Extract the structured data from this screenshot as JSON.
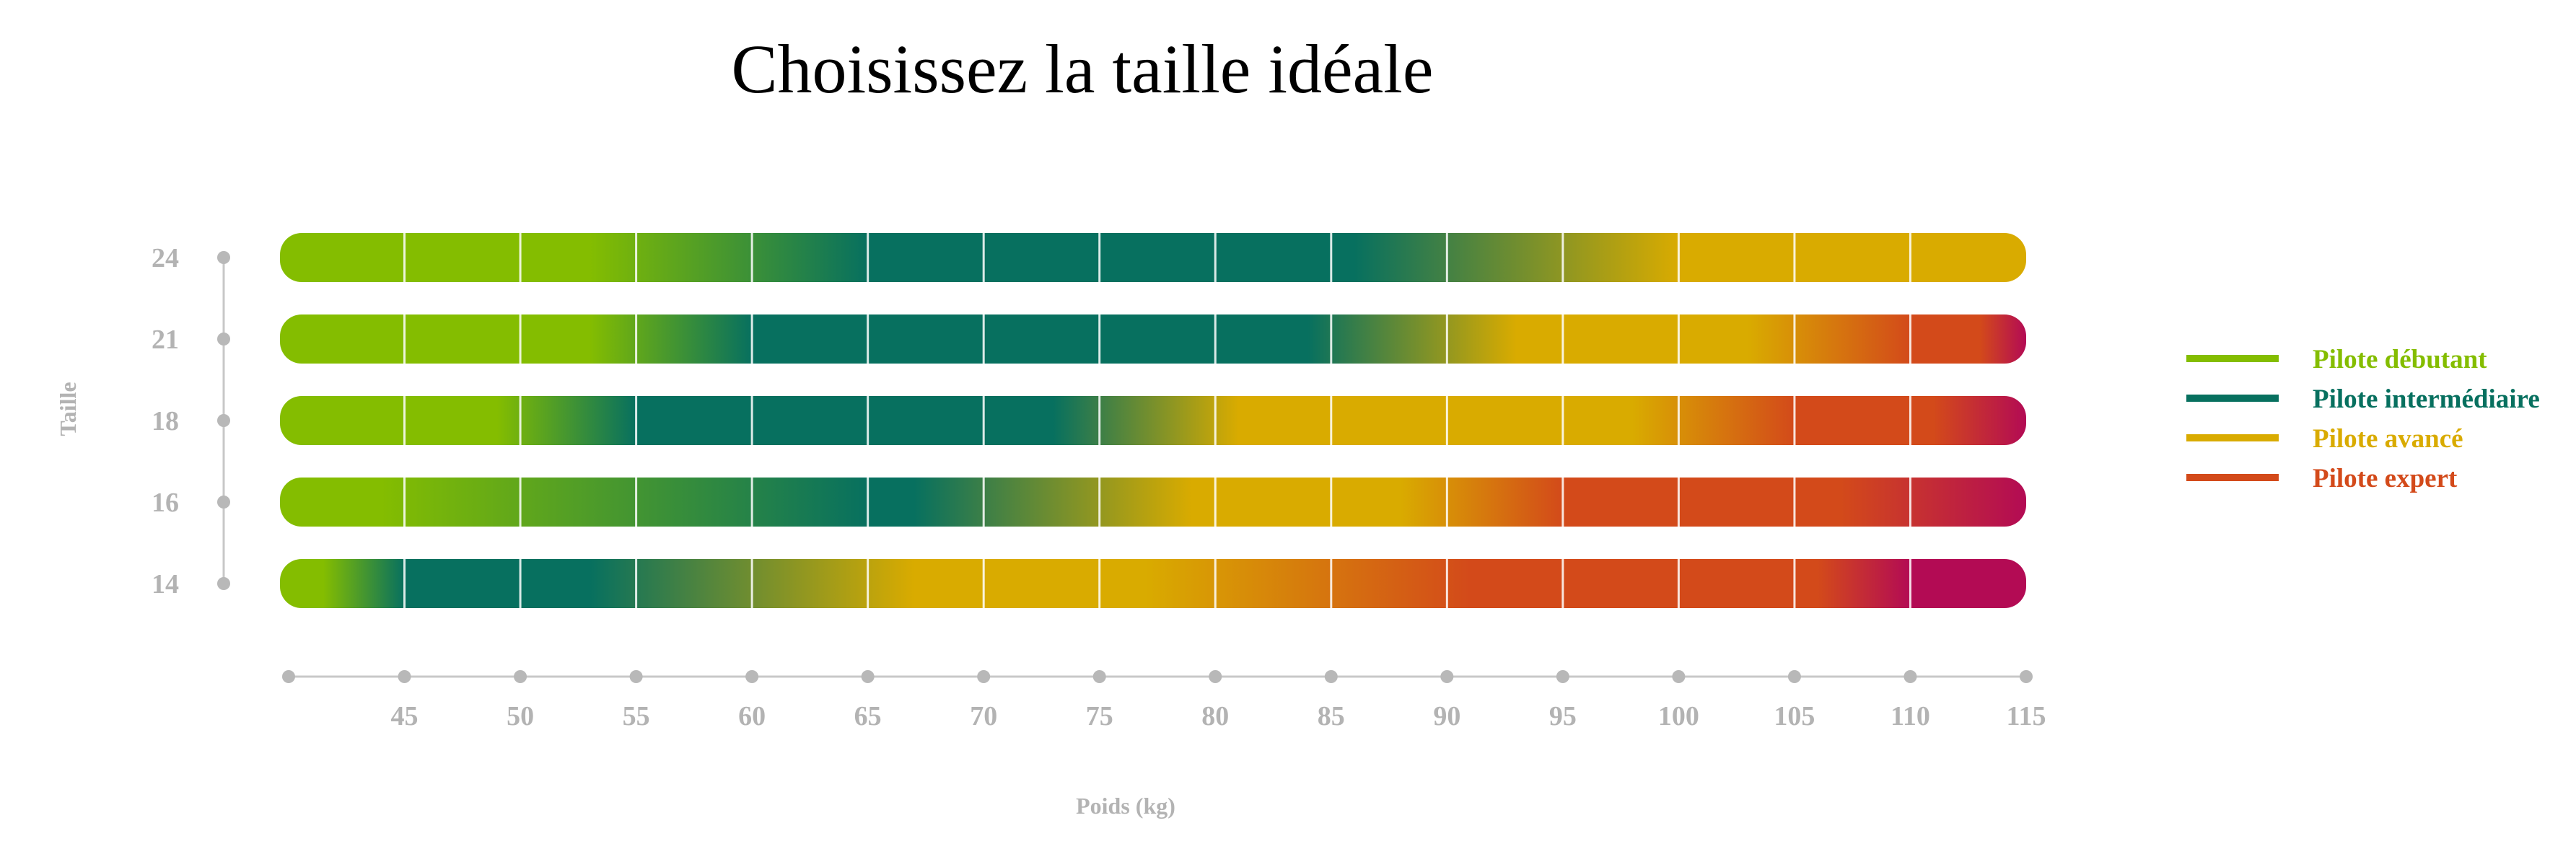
{
  "chart_data": {
    "type": "heatmap",
    "title": "Choisissez la taille idéale",
    "xlabel": "Poids (kg)",
    "ylabel": "Taille",
    "xlim": [
      40,
      115
    ],
    "x_ticks": [
      45,
      50,
      55,
      60,
      65,
      70,
      75,
      80,
      85,
      90,
      95,
      100,
      105,
      110,
      115
    ],
    "y_categories": [
      "24",
      "21",
      "18",
      "16",
      "14"
    ],
    "grid": true,
    "legend_position": "right",
    "legend": [
      {
        "name": "Pilote débutant",
        "color": "#84bd00"
      },
      {
        "name": "Pilote intermédiaire",
        "color": "#07705f"
      },
      {
        "name": "Pilote avancé",
        "color": "#d9ab00"
      },
      {
        "name": "Pilote expert",
        "color": "#d34a1a"
      }
    ],
    "colors": {
      "debutant": "#84bd00",
      "intermediaire": "#07705f",
      "avance": "#d9ab00",
      "expert": "#d34a1a",
      "extreme": "#b30b54"
    },
    "rows": [
      {
        "size": "24",
        "stops": [
          {
            "x": 40,
            "level": "debutant"
          },
          {
            "x": 53,
            "level": "debutant"
          },
          {
            "x": 65,
            "level": "intermediaire"
          },
          {
            "x": 86,
            "level": "intermediaire"
          },
          {
            "x": 100,
            "level": "avance"
          },
          {
            "x": 115,
            "level": "avance"
          }
        ]
      },
      {
        "size": "21",
        "stops": [
          {
            "x": 40,
            "level": "debutant"
          },
          {
            "x": 53,
            "level": "debutant"
          },
          {
            "x": 60,
            "level": "intermediaire"
          },
          {
            "x": 84,
            "level": "intermediaire"
          },
          {
            "x": 93,
            "level": "avance"
          },
          {
            "x": 103,
            "level": "avance"
          },
          {
            "x": 110,
            "level": "expert"
          },
          {
            "x": 113,
            "level": "expert"
          },
          {
            "x": 115,
            "level": "extreme"
          }
        ]
      },
      {
        "size": "18",
        "stops": [
          {
            "x": 40,
            "level": "debutant"
          },
          {
            "x": 49,
            "level": "debutant"
          },
          {
            "x": 55,
            "level": "intermediaire"
          },
          {
            "x": 73,
            "level": "intermediaire"
          },
          {
            "x": 81,
            "level": "avance"
          },
          {
            "x": 98,
            "level": "avance"
          },
          {
            "x": 105,
            "level": "expert"
          },
          {
            "x": 111,
            "level": "expert"
          },
          {
            "x": 115,
            "level": "extreme"
          }
        ]
      },
      {
        "size": "16",
        "stops": [
          {
            "x": 40,
            "level": "debutant"
          },
          {
            "x": 44,
            "level": "debutant"
          },
          {
            "x": 65,
            "level": "intermediaire"
          },
          {
            "x": 67,
            "level": "intermediaire"
          },
          {
            "x": 79,
            "level": "avance"
          },
          {
            "x": 88,
            "level": "avance"
          },
          {
            "x": 95,
            "level": "expert"
          },
          {
            "x": 107,
            "level": "expert"
          },
          {
            "x": 115,
            "level": "extreme"
          }
        ]
      },
      {
        "size": "14",
        "stops": [
          {
            "x": 40,
            "level": "debutant"
          },
          {
            "x": 41.5,
            "level": "debutant"
          },
          {
            "x": 45,
            "level": "intermediaire"
          },
          {
            "x": 53,
            "level": "intermediaire"
          },
          {
            "x": 67,
            "level": "avance"
          },
          {
            "x": 77,
            "level": "avance"
          },
          {
            "x": 91,
            "level": "expert"
          },
          {
            "x": 106,
            "level": "expert"
          },
          {
            "x": 110,
            "level": "extreme"
          },
          {
            "x": 115,
            "level": "extreme"
          }
        ]
      }
    ]
  }
}
